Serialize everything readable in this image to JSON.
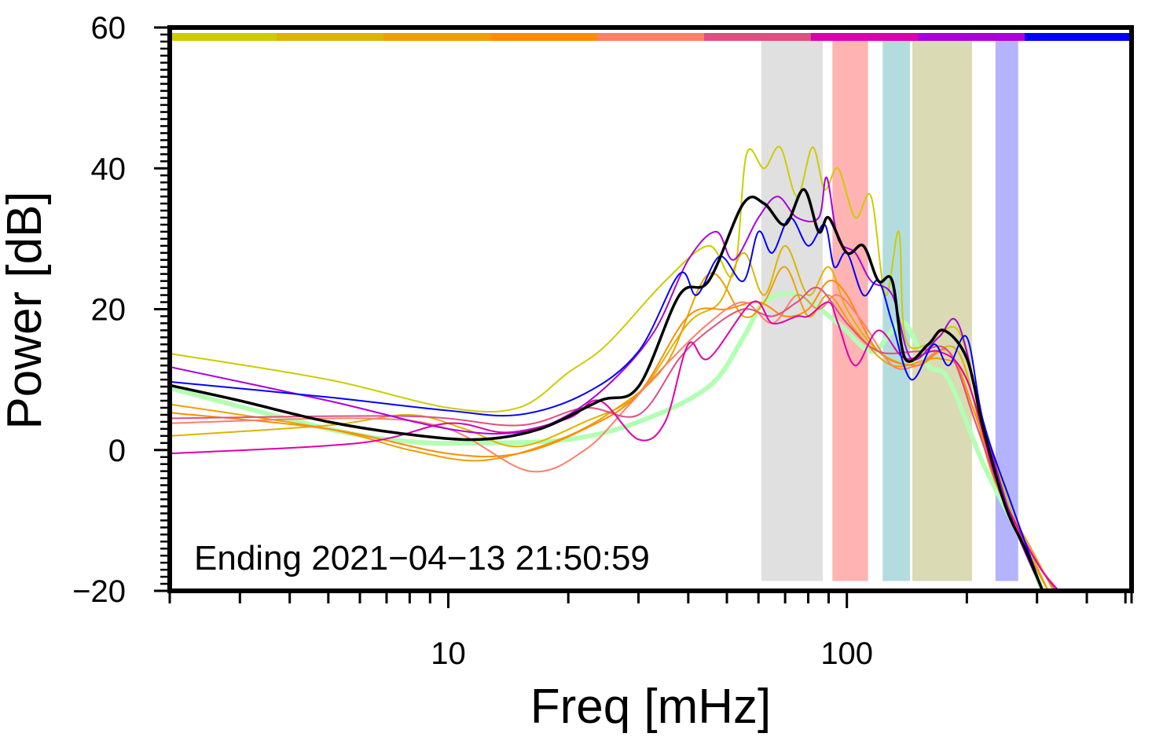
{
  "chart_data": {
    "type": "line",
    "xscale": "log",
    "xlabel": "Freq [mHz]",
    "ylabel": "Power [dB]",
    "xlim": [
      2,
      518
    ],
    "ylim": [
      -20,
      60
    ],
    "xticks": [
      {
        "value": 10,
        "label": "10"
      },
      {
        "value": 100,
        "label": "100"
      }
    ],
    "yticks": [
      {
        "value": 60,
        "label": "60"
      },
      {
        "value": 40,
        "label": "40"
      },
      {
        "value": 20,
        "label": "20"
      },
      {
        "value": 0,
        "label": "0"
      },
      {
        "value": -20,
        "label": "-20"
      }
    ],
    "annotation": "Ending 2021−04−13 21:50:59",
    "color_bar": [
      "#cccc00",
      "#ddb400",
      "#eea000",
      "#ff8c00",
      "#ff7f66",
      "#dd5080",
      "#dd00aa",
      "#aa00dd",
      "#0000ff"
    ],
    "bands": [
      {
        "from": 61,
        "to": 87,
        "color": "#e0e0e0"
      },
      {
        "from": 92,
        "to": 113,
        "color": "#ffb3b3"
      },
      {
        "from": 123,
        "to": 144,
        "color": "#b3dcdf"
      },
      {
        "from": 146,
        "to": 206,
        "color": "#dadab4"
      },
      {
        "from": 236,
        "to": 269,
        "color": "#b3b3ff"
      }
    ],
    "series": [
      {
        "name": "green",
        "color": "#b3ffb3",
        "width": 6,
        "points": [
          [
            2,
            8.8
          ],
          [
            5,
            3
          ],
          [
            8,
            1.2
          ],
          [
            12,
            1
          ],
          [
            20,
            1.5
          ],
          [
            30,
            4
          ],
          [
            45,
            9
          ],
          [
            55,
            16
          ],
          [
            62,
            21
          ],
          [
            75,
            22
          ],
          [
            95,
            18
          ],
          [
            115,
            14
          ],
          [
            130,
            17
          ],
          [
            140,
            18
          ],
          [
            160,
            12
          ],
          [
            180,
            10
          ],
          [
            220,
            -2
          ],
          [
            270,
            -12
          ],
          [
            310,
            -20
          ]
        ]
      },
      {
        "name": "s1",
        "color": "#cccc00",
        "width": 2,
        "points": [
          [
            2,
            13.7
          ],
          [
            5,
            10
          ],
          [
            10,
            6
          ],
          [
            15,
            6
          ],
          [
            20,
            11
          ],
          [
            25,
            15
          ],
          [
            35,
            24
          ],
          [
            45,
            29
          ],
          [
            52,
            25
          ],
          [
            56,
            42
          ],
          [
            62,
            40
          ],
          [
            68,
            43
          ],
          [
            75,
            36
          ],
          [
            82,
            43
          ],
          [
            88,
            37
          ],
          [
            95,
            40
          ],
          [
            105,
            33
          ],
          [
            115,
            36
          ],
          [
            125,
            22
          ],
          [
            135,
            31
          ],
          [
            140,
            16
          ],
          [
            160,
            15
          ],
          [
            190,
            17
          ],
          [
            220,
            4
          ],
          [
            260,
            -9
          ],
          [
            310,
            -20
          ]
        ]
      },
      {
        "name": "s2",
        "color": "#ddb400",
        "width": 2,
        "points": [
          [
            2,
            2
          ],
          [
            5,
            3.5
          ],
          [
            8,
            5
          ],
          [
            11,
            3
          ],
          [
            15,
            0.5
          ],
          [
            22,
            4
          ],
          [
            30,
            8
          ],
          [
            40,
            18
          ],
          [
            48,
            21
          ],
          [
            55,
            28
          ],
          [
            62,
            22
          ],
          [
            70,
            29
          ],
          [
            80,
            22
          ],
          [
            90,
            26
          ],
          [
            100,
            20
          ],
          [
            120,
            14
          ],
          [
            150,
            12
          ],
          [
            190,
            14
          ],
          [
            230,
            -3
          ],
          [
            280,
            -13
          ],
          [
            320,
            -20
          ]
        ]
      },
      {
        "name": "s3",
        "color": "#eea000",
        "width": 2,
        "points": [
          [
            2,
            6.5
          ],
          [
            5,
            3
          ],
          [
            8,
            0
          ],
          [
            12,
            -1.5
          ],
          [
            18,
            1
          ],
          [
            25,
            5
          ],
          [
            35,
            12
          ],
          [
            45,
            25
          ],
          [
            55,
            19
          ],
          [
            62,
            21
          ],
          [
            70,
            26
          ],
          [
            80,
            19
          ],
          [
            90,
            22
          ],
          [
            105,
            17
          ],
          [
            130,
            12
          ],
          [
            170,
            13
          ],
          [
            200,
            10
          ],
          [
            240,
            -5
          ],
          [
            290,
            -14
          ],
          [
            330,
            -20
          ]
        ]
      },
      {
        "name": "s4",
        "color": "#ff8c00",
        "width": 2,
        "points": [
          [
            2,
            5.3
          ],
          [
            5,
            3
          ],
          [
            10,
            -0.5
          ],
          [
            15,
            -0.5
          ],
          [
            22,
            3
          ],
          [
            30,
            8
          ],
          [
            40,
            19
          ],
          [
            50,
            20
          ],
          [
            60,
            21
          ],
          [
            70,
            19
          ],
          [
            80,
            20
          ],
          [
            90,
            24
          ],
          [
            100,
            22
          ],
          [
            120,
            14
          ],
          [
            150,
            12
          ],
          [
            180,
            14
          ],
          [
            210,
            5
          ],
          [
            250,
            -8
          ],
          [
            300,
            -17
          ],
          [
            320,
            -20
          ]
        ]
      },
      {
        "name": "s5",
        "color": "#ff7f66",
        "width": 2,
        "points": [
          [
            2,
            3.8
          ],
          [
            6,
            4.5
          ],
          [
            10,
            3
          ],
          [
            16,
            -3
          ],
          [
            22,
            0
          ],
          [
            28,
            6
          ],
          [
            35,
            12
          ],
          [
            45,
            18
          ],
          [
            55,
            21
          ],
          [
            65,
            18
          ],
          [
            75,
            22
          ],
          [
            85,
            20
          ],
          [
            95,
            22
          ],
          [
            110,
            18
          ],
          [
            130,
            12
          ],
          [
            150,
            12
          ],
          [
            180,
            14
          ],
          [
            210,
            4
          ],
          [
            250,
            -8
          ],
          [
            300,
            -16
          ],
          [
            340,
            -20
          ]
        ]
      },
      {
        "name": "s6",
        "color": "#dd5080",
        "width": 2,
        "points": [
          [
            2,
            4.5
          ],
          [
            8,
            4.8
          ],
          [
            15,
            3.5
          ],
          [
            22,
            6
          ],
          [
            30,
            5
          ],
          [
            38,
            13
          ],
          [
            45,
            17
          ],
          [
            55,
            20
          ],
          [
            65,
            19
          ],
          [
            75,
            21
          ],
          [
            85,
            23
          ],
          [
            100,
            18
          ],
          [
            120,
            14
          ],
          [
            150,
            14
          ],
          [
            180,
            14
          ],
          [
            210,
            4
          ],
          [
            250,
            -8
          ],
          [
            300,
            -16
          ],
          [
            335,
            -20
          ]
        ]
      },
      {
        "name": "s7",
        "color": "#dd00aa",
        "width": 2,
        "points": [
          [
            2,
            -0.5
          ],
          [
            6,
            1
          ],
          [
            10,
            3.8
          ],
          [
            14,
            2.5
          ],
          [
            20,
            4.5
          ],
          [
            24,
            7
          ],
          [
            30,
            1.5
          ],
          [
            35,
            4
          ],
          [
            40,
            15
          ],
          [
            45,
            13
          ],
          [
            58,
            21
          ],
          [
            65,
            18
          ],
          [
            75,
            19
          ],
          [
            80,
            19
          ],
          [
            90,
            21
          ],
          [
            95,
            18
          ],
          [
            105,
            12
          ],
          [
            120,
            17
          ],
          [
            140,
            13
          ],
          [
            170,
            14
          ],
          [
            200,
            10
          ],
          [
            240,
            -5
          ],
          [
            300,
            -16
          ],
          [
            340,
            -20
          ]
        ]
      },
      {
        "name": "s8",
        "color": "#aa00dd",
        "width": 2,
        "points": [
          [
            2,
            11.8
          ],
          [
            5,
            7
          ],
          [
            10,
            3
          ],
          [
            15,
            2.5
          ],
          [
            20,
            5
          ],
          [
            26,
            10
          ],
          [
            33,
            17
          ],
          [
            40,
            27
          ],
          [
            47,
            31
          ],
          [
            52,
            27
          ],
          [
            60,
            33
          ],
          [
            67,
            36
          ],
          [
            75,
            33
          ],
          [
            85,
            33
          ],
          [
            89,
            38.7
          ],
          [
            95,
            30
          ],
          [
            105,
            28
          ],
          [
            115,
            24
          ],
          [
            130,
            22
          ],
          [
            145,
            13
          ],
          [
            170,
            16
          ],
          [
            190,
            18
          ],
          [
            220,
            4
          ],
          [
            260,
            -10
          ],
          [
            310,
            -20
          ]
        ]
      },
      {
        "name": "s9",
        "color": "#0000ff",
        "width": 2,
        "points": [
          [
            2,
            9.7
          ],
          [
            5,
            7.5
          ],
          [
            10,
            5.6
          ],
          [
            15,
            5
          ],
          [
            22,
            8
          ],
          [
            30,
            14
          ],
          [
            38,
            25
          ],
          [
            42,
            22
          ],
          [
            48,
            27.5
          ],
          [
            55,
            24
          ],
          [
            60,
            31
          ],
          [
            65,
            28
          ],
          [
            72,
            33
          ],
          [
            80,
            29
          ],
          [
            88,
            32
          ],
          [
            93,
            26
          ],
          [
            100,
            28
          ],
          [
            110,
            22
          ],
          [
            120,
            24
          ],
          [
            130,
            18
          ],
          [
            145,
            10
          ],
          [
            165,
            15
          ],
          [
            180,
            12
          ],
          [
            200,
            16
          ],
          [
            220,
            4
          ],
          [
            260,
            -8
          ],
          [
            310,
            -20
          ]
        ]
      },
      {
        "name": "mean",
        "color": "#000000",
        "width": 3.5,
        "points": [
          [
            2,
            9.2
          ],
          [
            3,
            7
          ],
          [
            5,
            4
          ],
          [
            8,
            2.2
          ],
          [
            12,
            1.5
          ],
          [
            17,
            3
          ],
          [
            24,
            7
          ],
          [
            30,
            9
          ],
          [
            38,
            22
          ],
          [
            45,
            24
          ],
          [
            55,
            35
          ],
          [
            62,
            35
          ],
          [
            70,
            32
          ],
          [
            78,
            37
          ],
          [
            85,
            31
          ],
          [
            90,
            33
          ],
          [
            100,
            28
          ],
          [
            110,
            29
          ],
          [
            120,
            24
          ],
          [
            130,
            24
          ],
          [
            140,
            13
          ],
          [
            160,
            15
          ],
          [
            175,
            17
          ],
          [
            200,
            13
          ],
          [
            220,
            3
          ],
          [
            250,
            -8
          ],
          [
            280,
            -14
          ],
          [
            310,
            -20
          ]
        ]
      }
    ]
  }
}
